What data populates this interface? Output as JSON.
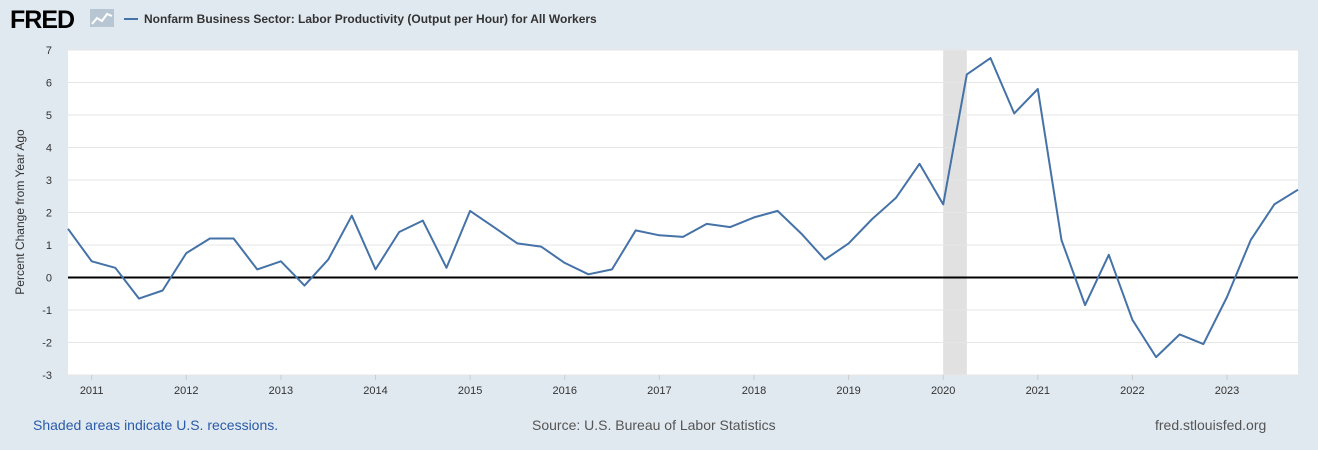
{
  "header": {
    "logo_text": "FRED",
    "logo_mark": "fred-chart-icon",
    "legend_series": "Nonfarm Business Sector: Labor Productivity (Output per Hour) for All Workers",
    "series_color": "#4572a7"
  },
  "footer": {
    "recession_note": "Shaded areas indicate U.S. recessions.",
    "source": "Source: U.S. Bureau of Labor Statistics",
    "site": "fred.stlouisfed.org"
  },
  "chart_data": {
    "type": "line",
    "ylabel": "Percent Change from Year Ago",
    "ylim": [
      -3,
      7
    ],
    "yticks": [
      7,
      6,
      5,
      4,
      3,
      2,
      1,
      0,
      -1,
      -2,
      -3
    ],
    "xlim": [
      2010.75,
      2023.75
    ],
    "xticks": [
      "2011",
      "2012",
      "2013",
      "2014",
      "2015",
      "2016",
      "2017",
      "2018",
      "2019",
      "2020",
      "2021",
      "2022",
      "2023"
    ],
    "grid": true,
    "zero_line": true,
    "recessions": [
      [
        2020.0,
        2020.25
      ]
    ],
    "series": [
      {
        "x": [
          2010.75,
          2011.0,
          2011.25,
          2011.5,
          2011.75,
          2012.0,
          2012.25,
          2012.5,
          2012.75,
          2013.0,
          2013.25,
          2013.5,
          2013.75,
          2014.0,
          2014.25,
          2014.5,
          2014.75,
          2015.0,
          2015.25,
          2015.5,
          2015.75,
          2016.0,
          2016.25,
          2016.5,
          2016.75,
          2017.0,
          2017.25,
          2017.5,
          2017.75,
          2018.0,
          2018.25,
          2018.5,
          2018.75,
          2019.0,
          2019.25,
          2019.5,
          2019.75,
          2020.0,
          2020.25,
          2020.5,
          2020.75,
          2021.0,
          2021.25,
          2021.5,
          2021.75,
          2022.0,
          2022.25,
          2022.5,
          2022.75,
          2023.0,
          2023.25,
          2023.5,
          2023.75
        ],
        "values": [
          1.5,
          0.5,
          0.3,
          -0.65,
          -0.4,
          0.75,
          1.2,
          1.2,
          0.25,
          0.5,
          -0.25,
          0.55,
          1.9,
          0.25,
          1.4,
          1.75,
          0.3,
          2.05,
          1.55,
          1.05,
          0.95,
          0.45,
          0.1,
          0.25,
          1.45,
          1.3,
          1.25,
          1.65,
          1.55,
          1.85,
          2.05,
          1.35,
          0.55,
          1.05,
          1.8,
          2.45,
          3.5,
          2.25,
          6.25,
          6.75,
          5.05,
          5.8,
          1.15,
          -0.85,
          0.7,
          -1.3,
          -2.45,
          -1.75,
          -2.05,
          -0.6,
          1.15,
          2.25,
          2.7
        ]
      }
    ]
  }
}
